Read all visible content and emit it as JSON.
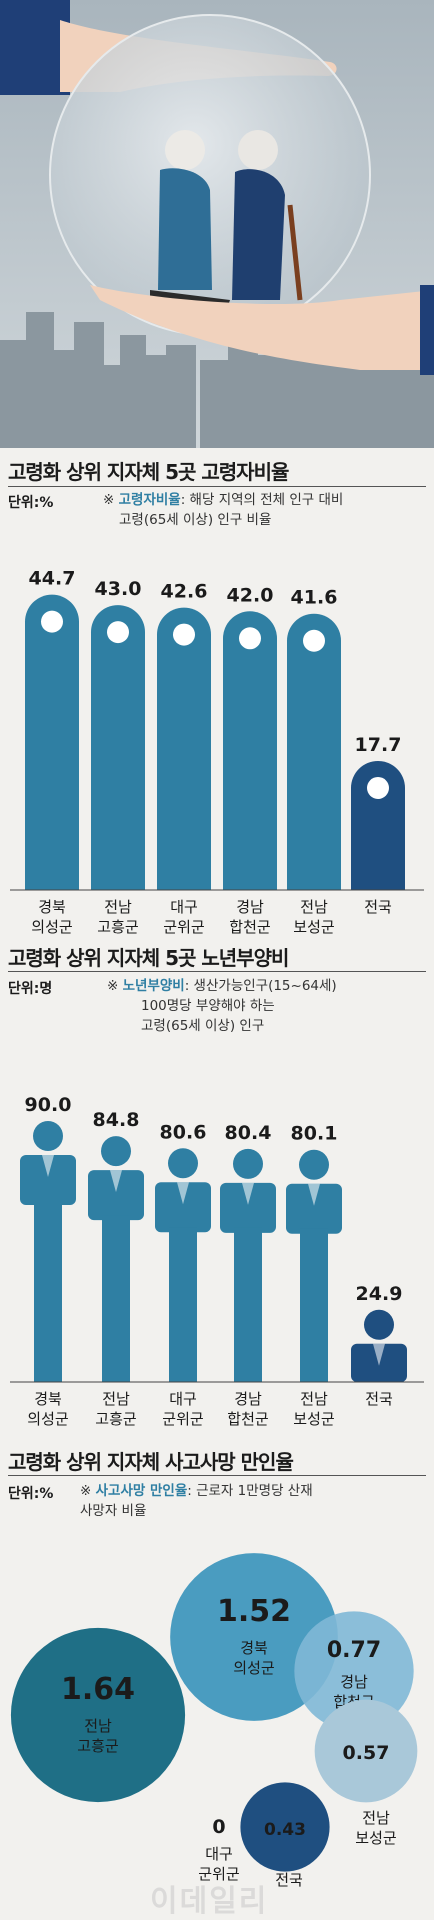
{
  "sections": {
    "ratio": {
      "title": "고령화 상위 지자체 5곳 고령자비율",
      "unit": "단위:%",
      "note_mark": "※",
      "note_key": "고령자비율",
      "note_line1": ": 해당 지역의 전체 인구 대비",
      "note_line2": "고령(65세 이상) 인구 비율"
    },
    "dependency": {
      "title": "고령화 상위 지자체 5곳 노년부양비",
      "unit": "단위:명",
      "note_mark": "※",
      "note_key": "노년부양비",
      "note_line1": ": 생산가능인구(15~64세)",
      "note_line2": "100명당 부양해야 하는",
      "note_line3": "고령(65세 이상) 인구"
    },
    "accident": {
      "title": "고령화 상위 지자체 사고사망 만인율",
      "unit": "단위:%",
      "note_mark": "※",
      "note_key": "사고사망 만인율",
      "note_line1": ": 근로자 1만명당 산재",
      "note_line2": "사망자 비율"
    }
  },
  "colors": {
    "bar": "#2f7fa3",
    "bar_national": "#1f4f80",
    "bubble_dark": "#1f6f86",
    "bubble_mid": "#4a9cc0",
    "bubble_light": "#7fb8d6",
    "bubble_national": "#1f4f80"
  },
  "chart_data": [
    {
      "type": "bar",
      "title": "고령화 상위 지자체 5곳 고령자비율",
      "unit": "%",
      "categories": [
        [
          "경북",
          "의성군"
        ],
        [
          "전남",
          "고흥군"
        ],
        [
          "대구",
          "군위군"
        ],
        [
          "경남",
          "합천군"
        ],
        [
          "전남",
          "보성군"
        ],
        [
          "전국"
        ]
      ],
      "values": [
        44.7,
        43.0,
        42.6,
        42.0,
        41.6,
        17.7
      ],
      "value_labels": [
        "44.7",
        "43.0",
        "42.6",
        "42.0",
        "41.6",
        "17.7"
      ],
      "ylim": [
        0,
        50
      ]
    },
    {
      "type": "bar",
      "title": "고령화 상위 지자체 5곳 노년부양비",
      "unit": "명",
      "categories": [
        [
          "경북",
          "의성군"
        ],
        [
          "전남",
          "고흥군"
        ],
        [
          "대구",
          "군위군"
        ],
        [
          "경남",
          "합천군"
        ],
        [
          "전남",
          "보성군"
        ],
        [
          "전국"
        ]
      ],
      "values": [
        90.0,
        84.8,
        80.6,
        80.4,
        80.1,
        24.9
      ],
      "value_labels": [
        "90.0",
        "84.8",
        "80.6",
        "80.4",
        "80.1",
        "24.9"
      ],
      "ylim": [
        0,
        100
      ]
    },
    {
      "type": "bubble",
      "title": "고령화 상위 지자체 사고사망 만인율",
      "unit": "%",
      "points": [
        {
          "label": [
            "경북",
            "의성군"
          ],
          "value": 1.52,
          "value_label": "1.52"
        },
        {
          "label": [
            "경남",
            "합천군"
          ],
          "value": 0.77,
          "value_label": "0.77"
        },
        {
          "label": [
            "전남",
            "고흥군"
          ],
          "value": 1.64,
          "value_label": "1.64"
        },
        {
          "label": [
            "전남",
            "보성군"
          ],
          "value": 0.57,
          "value_label": "0.57"
        },
        {
          "label": [
            "대구",
            "군위군"
          ],
          "value": 0,
          "value_label": "0"
        },
        {
          "label": [
            "전국"
          ],
          "value": 0.43,
          "value_label": "0.43"
        }
      ]
    }
  ],
  "watermark": "이데일리"
}
